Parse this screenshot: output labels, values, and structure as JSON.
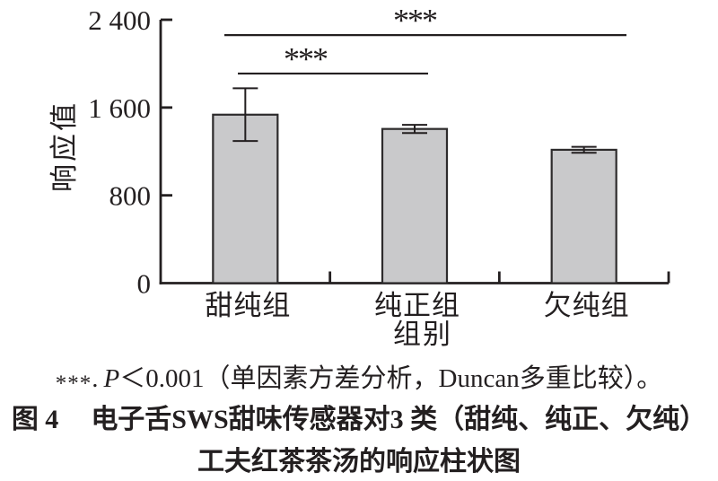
{
  "chart_data": {
    "type": "bar",
    "categories": [
      "甜纯组",
      "纯正组",
      "欠纯组"
    ],
    "values": [
      1535,
      1405,
      1215
    ],
    "error_bars": [
      240,
      37,
      27
    ],
    "xlabel": "组别",
    "ylabel": "响应值",
    "ylim": [
      0,
      2400
    ],
    "yticks": [
      0,
      800,
      1600,
      2400
    ],
    "ytick_labels": [
      "0",
      "800",
      "1 600",
      "2 400"
    ],
    "grid": false,
    "legend": "none",
    "bar_fill": "#c9c9cb",
    "bar_stroke": "#2d2b2c",
    "axis_color": "#231f20",
    "significance": [
      {
        "between": [
          "甜纯组",
          "纯正组"
        ],
        "label": "***",
        "level": 1910
      },
      {
        "between": [
          "甜纯组",
          "欠纯组"
        ],
        "label": "***",
        "level": 2260
      }
    ]
  },
  "caption": {
    "stars": "***",
    "sep": ".",
    "p": "P",
    "rest": "＜0.001（单因素方差分析，Duncan多重比较）。"
  },
  "title": {
    "fig_label": "图 4",
    "line1": "电子舌SWS甜味传感器对3 类（甜纯、纯正、欠纯）",
    "line2": "工夫红茶茶汤的响应柱状图"
  }
}
